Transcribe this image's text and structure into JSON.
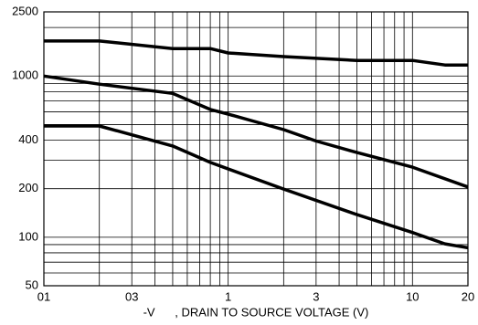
{
  "chart_data": {
    "type": "line",
    "x_label": "-V      , DRAIN TO SOURCE VOLTAGE (V)",
    "xlog": true,
    "ylog": true,
    "grid": true,
    "xlim": [
      0.1,
      20
    ],
    "ylim": [
      50,
      2500
    ],
    "xticks": [
      {
        "value": 0.1,
        "label": "01"
      },
      {
        "value": 0.3,
        "label": "03"
      },
      1,
      3,
      10,
      20
    ],
    "yticks": [
      50,
      100,
      200,
      400,
      1000,
      2500
    ],
    "x_minor_grid": [
      0.2,
      0.4,
      0.5,
      0.6,
      0.7,
      0.8,
      0.9,
      2,
      4,
      5,
      6,
      7,
      8,
      9
    ],
    "y_minor_grid": [
      60,
      70,
      80,
      90,
      300,
      500,
      600,
      700,
      800,
      900,
      2000
    ],
    "series": [
      {
        "color": "#000000",
        "x": [
          0.1,
          0.2,
          0.5,
          0.8,
          1,
          2,
          5,
          10,
          15,
          20
        ],
        "values": [
          1650,
          1650,
          1480,
          1480,
          1390,
          1320,
          1250,
          1250,
          1170,
          1170
        ]
      },
      {
        "color": "#000000",
        "x": [
          0.1,
          0.2,
          0.5,
          0.8,
          1,
          2,
          3,
          5,
          10,
          20
        ],
        "values": [
          1000,
          890,
          780,
          620,
          580,
          465,
          395,
          335,
          272,
          205
        ]
      },
      {
        "color": "#000000",
        "x": [
          0.1,
          0.2,
          0.5,
          0.8,
          2,
          5,
          10,
          15,
          20
        ],
        "values": [
          490,
          490,
          368,
          291,
          199,
          138,
          107,
          91,
          86
        ]
      }
    ]
  }
}
